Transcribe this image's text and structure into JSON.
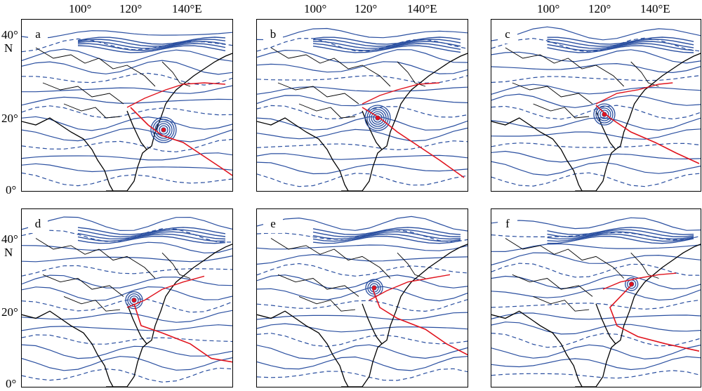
{
  "axes": {
    "top_lon_labels": [
      "100°",
      "120°",
      "140°E"
    ],
    "left_lat_labels_top": [
      "40°",
      "N",
      "20°",
      "0°"
    ],
    "left_lat_labels_bottom": [
      "40°",
      "N",
      "20°",
      "0°"
    ]
  },
  "panels": [
    {
      "letter": "a"
    },
    {
      "letter": "b"
    },
    {
      "letter": "c"
    },
    {
      "letter": "d"
    },
    {
      "letter": "e"
    },
    {
      "letter": "f"
    }
  ],
  "colors": {
    "contour": "#2a4fa0",
    "coast": "#000000",
    "track": "#e0141e",
    "typhoon_fill": "#3355aa"
  }
}
